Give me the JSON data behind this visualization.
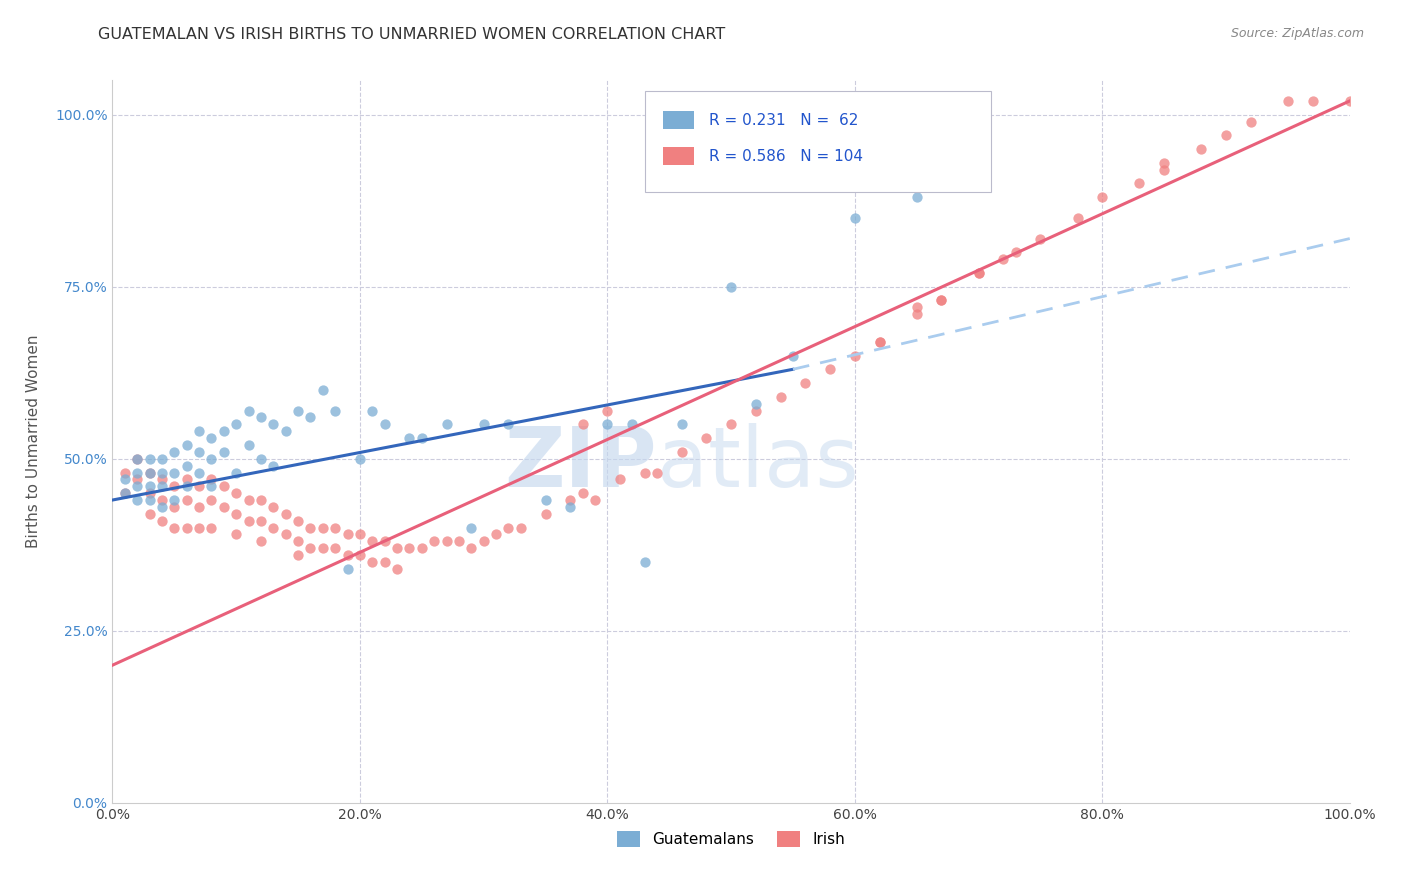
{
  "title": "GUATEMALAN VS IRISH BIRTHS TO UNMARRIED WOMEN CORRELATION CHART",
  "source": "Source: ZipAtlas.com",
  "ylabel": "Births to Unmarried Women",
  "ytick_labels": [
    "0.0%",
    "25.0%",
    "50.0%",
    "75.0%",
    "100.0%"
  ],
  "ytick_positions": [
    0.0,
    0.25,
    0.5,
    0.75,
    1.0
  ],
  "xtick_positions": [
    0.0,
    0.2,
    0.4,
    0.6,
    0.8,
    1.0
  ],
  "xtick_labels": [
    "0.0%",
    "20.0%",
    "40.0%",
    "60.0%",
    "80.0%",
    "100.0%"
  ],
  "legend_guatemalan": "Guatemalans",
  "legend_irish": "Irish",
  "R_guatemalan": 0.231,
  "N_guatemalan": 62,
  "R_irish": 0.586,
  "N_irish": 104,
  "color_guatemalan": "#7BADD4",
  "color_irish": "#F08080",
  "color_trend_guatemalan": "#3366BB",
  "color_trend_irish": "#E8607A",
  "color_trend_guatemalan_dashed": "#AACCEE",
  "watermark_zip": "ZIP",
  "watermark_atlas": "atlas",
  "background_color": "#FFFFFF",
  "guat_trend_x0": 0.0,
  "guat_trend_y0": 0.44,
  "guat_trend_x1": 0.55,
  "guat_trend_y1": 0.63,
  "guat_trend_dash_x0": 0.55,
  "guat_trend_dash_y0": 0.63,
  "guat_trend_dash_x1": 1.0,
  "guat_trend_dash_y1": 0.82,
  "irish_trend_x0": 0.0,
  "irish_trend_y0": 0.2,
  "irish_trend_x1": 1.0,
  "irish_trend_y1": 1.02,
  "guatemalan_x": [
    0.01,
    0.01,
    0.02,
    0.02,
    0.02,
    0.02,
    0.03,
    0.03,
    0.03,
    0.03,
    0.04,
    0.04,
    0.04,
    0.04,
    0.05,
    0.05,
    0.05,
    0.06,
    0.06,
    0.06,
    0.07,
    0.07,
    0.07,
    0.08,
    0.08,
    0.08,
    0.09,
    0.09,
    0.1,
    0.1,
    0.11,
    0.11,
    0.12,
    0.12,
    0.13,
    0.13,
    0.14,
    0.15,
    0.16,
    0.17,
    0.18,
    0.19,
    0.2,
    0.21,
    0.22,
    0.24,
    0.25,
    0.27,
    0.29,
    0.3,
    0.32,
    0.35,
    0.37,
    0.4,
    0.42,
    0.43,
    0.46,
    0.5,
    0.52,
    0.55,
    0.6,
    0.65
  ],
  "guatemalan_y": [
    0.47,
    0.45,
    0.5,
    0.48,
    0.46,
    0.44,
    0.5,
    0.48,
    0.46,
    0.44,
    0.5,
    0.48,
    0.46,
    0.43,
    0.51,
    0.48,
    0.44,
    0.52,
    0.49,
    0.46,
    0.54,
    0.51,
    0.48,
    0.53,
    0.5,
    0.46,
    0.54,
    0.51,
    0.55,
    0.48,
    0.57,
    0.52,
    0.56,
    0.5,
    0.55,
    0.49,
    0.54,
    0.57,
    0.56,
    0.6,
    0.57,
    0.34,
    0.5,
    0.57,
    0.55,
    0.53,
    0.53,
    0.55,
    0.4,
    0.55,
    0.55,
    0.44,
    0.43,
    0.55,
    0.55,
    0.35,
    0.55,
    0.75,
    0.58,
    0.65,
    0.85,
    0.88
  ],
  "irish_x": [
    0.01,
    0.01,
    0.02,
    0.02,
    0.03,
    0.03,
    0.03,
    0.04,
    0.04,
    0.04,
    0.05,
    0.05,
    0.05,
    0.06,
    0.06,
    0.06,
    0.07,
    0.07,
    0.07,
    0.08,
    0.08,
    0.08,
    0.09,
    0.09,
    0.1,
    0.1,
    0.1,
    0.11,
    0.11,
    0.12,
    0.12,
    0.12,
    0.13,
    0.13,
    0.14,
    0.14,
    0.15,
    0.15,
    0.15,
    0.16,
    0.16,
    0.17,
    0.17,
    0.18,
    0.18,
    0.19,
    0.19,
    0.2,
    0.2,
    0.21,
    0.21,
    0.22,
    0.22,
    0.23,
    0.23,
    0.24,
    0.25,
    0.26,
    0.27,
    0.28,
    0.29,
    0.3,
    0.31,
    0.32,
    0.33,
    0.35,
    0.37,
    0.38,
    0.39,
    0.41,
    0.43,
    0.44,
    0.46,
    0.48,
    0.5,
    0.52,
    0.54,
    0.56,
    0.58,
    0.6,
    0.62,
    0.65,
    0.67,
    0.7,
    0.72,
    0.75,
    0.78,
    0.8,
    0.83,
    0.85,
    0.88,
    0.9,
    0.92,
    0.95,
    0.97,
    1.0,
    0.38,
    0.4,
    0.62,
    0.65,
    0.67,
    0.7,
    0.73,
    0.85
  ],
  "irish_y": [
    0.48,
    0.45,
    0.5,
    0.47,
    0.48,
    0.45,
    0.42,
    0.47,
    0.44,
    0.41,
    0.46,
    0.43,
    0.4,
    0.47,
    0.44,
    0.4,
    0.46,
    0.43,
    0.4,
    0.47,
    0.44,
    0.4,
    0.46,
    0.43,
    0.45,
    0.42,
    0.39,
    0.44,
    0.41,
    0.44,
    0.41,
    0.38,
    0.43,
    0.4,
    0.42,
    0.39,
    0.41,
    0.38,
    0.36,
    0.4,
    0.37,
    0.4,
    0.37,
    0.4,
    0.37,
    0.39,
    0.36,
    0.39,
    0.36,
    0.38,
    0.35,
    0.38,
    0.35,
    0.37,
    0.34,
    0.37,
    0.37,
    0.38,
    0.38,
    0.38,
    0.37,
    0.38,
    0.39,
    0.4,
    0.4,
    0.42,
    0.44,
    0.45,
    0.44,
    0.47,
    0.48,
    0.48,
    0.51,
    0.53,
    0.55,
    0.57,
    0.59,
    0.61,
    0.63,
    0.65,
    0.67,
    0.71,
    0.73,
    0.77,
    0.79,
    0.82,
    0.85,
    0.88,
    0.9,
    0.93,
    0.95,
    0.97,
    0.99,
    1.02,
    1.02,
    1.02,
    0.55,
    0.57,
    0.67,
    0.72,
    0.73,
    0.77,
    0.8,
    0.92
  ]
}
